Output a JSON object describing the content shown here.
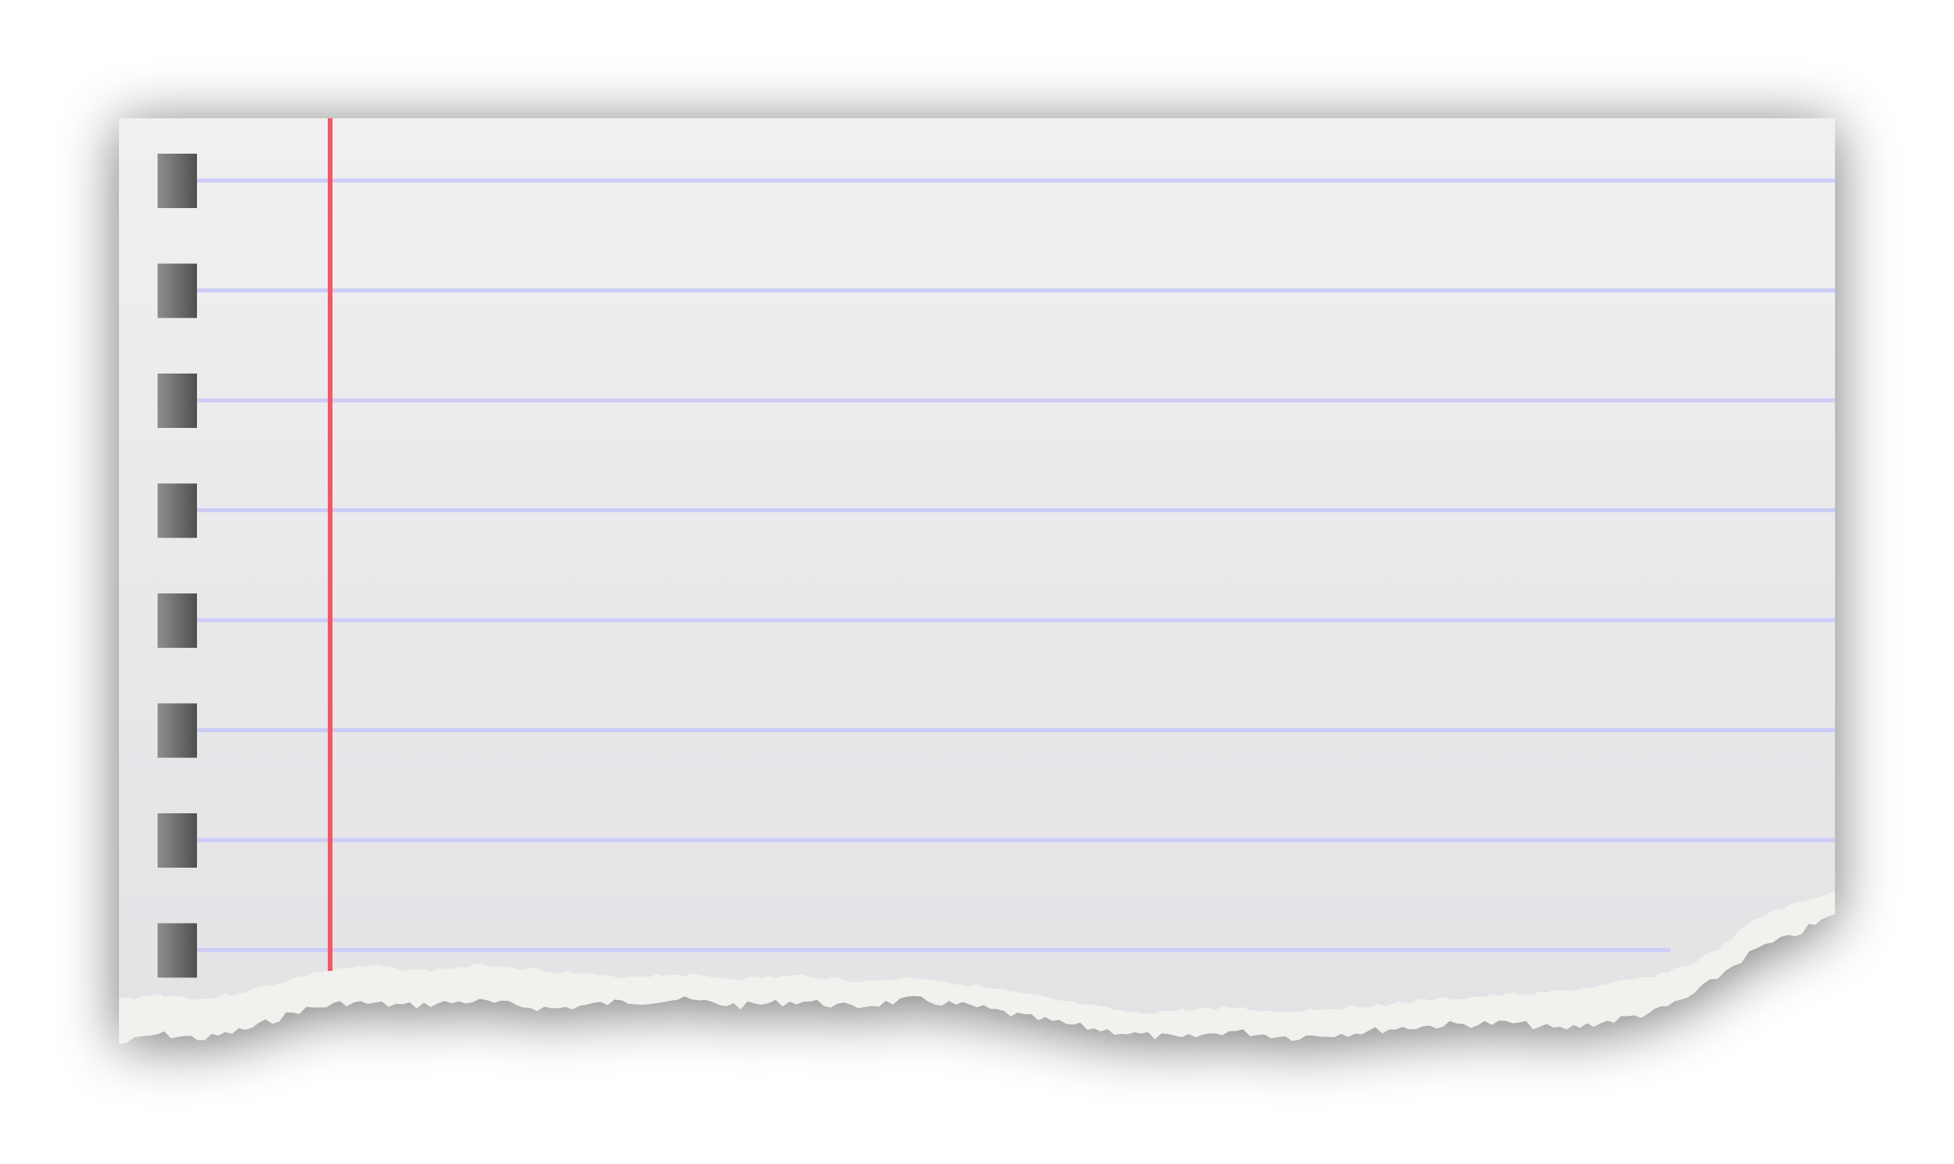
{
  "sheet": {
    "kind": "torn lined notebook paper",
    "ruled_line_count": 8,
    "punch_hole_count": 8,
    "text": ""
  },
  "colors": {
    "background": "#ffffff",
    "paper_top": "#f0f0f2",
    "paper_bottom": "#e3e3e6",
    "ruled_line": "#ccccf7",
    "margin_line": "#ee5a66",
    "hole_light": "#8e8e8e",
    "hole_dark": "#4f4f4f",
    "torn_edge": "#f1f1ee",
    "shadow": "#000000"
  },
  "icons": {
    "punch_hole": "punch-hole-icon",
    "margin": "margin-line"
  }
}
